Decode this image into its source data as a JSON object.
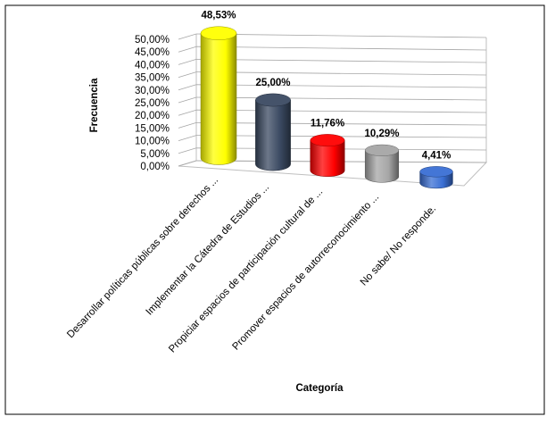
{
  "chart_data": {
    "type": "bar",
    "style": "3d-cylinder",
    "title": "",
    "xlabel": "Categoría",
    "ylabel": "Frecuencia",
    "ylim": [
      0,
      50
    ],
    "ytick_step": 5,
    "yticks": [
      "0,00%",
      "5,00%",
      "10,00%",
      "15,00%",
      "20,00%",
      "25,00%",
      "30,00%",
      "35,00%",
      "40,00%",
      "45,00%",
      "50,00%"
    ],
    "grid": true,
    "legend": "none",
    "categories": [
      "Desarrollar políticas públicas sobre derechos ...",
      "Implementar la Cátedra de Estudios ...",
      "Propiciar espacios de participación cultural de ...",
      "Promover espacios de autorreconocimiento ...",
      "No sabe/ No responde."
    ],
    "values": [
      48.53,
      25.0,
      11.76,
      10.29,
      4.41
    ],
    "data_labels": [
      "48,53%",
      "25,00%",
      "11,76%",
      "10,29%",
      "4,41%"
    ],
    "colors": [
      "#ffff00",
      "#3b4a62",
      "#ff0000",
      "#a6a6a6",
      "#3a6fd4"
    ]
  }
}
